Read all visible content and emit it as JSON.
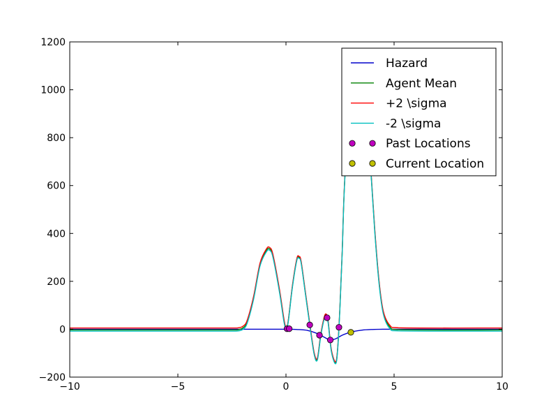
{
  "chart_data": {
    "type": "line",
    "title": "",
    "xlabel": "",
    "ylabel": "",
    "xlim": [
      -10,
      10
    ],
    "ylim": [
      -200,
      1200
    ],
    "xticks": [
      -10,
      -5,
      0,
      5,
      10
    ],
    "xtick_labels": [
      "−10",
      "−5",
      "0",
      "5",
      "10"
    ],
    "yticks": [
      -200,
      0,
      200,
      400,
      600,
      800,
      1000,
      1200
    ],
    "ytick_labels": [
      "−200",
      "0",
      "200",
      "400",
      "600",
      "800",
      "1000",
      "1200"
    ],
    "grid": false,
    "legend_position": "top-right",
    "series": [
      {
        "name": "Hazard",
        "kind": "line",
        "color": "#0000cc",
        "x": [
          -10,
          -2.5,
          -2,
          -1.5,
          -1,
          -0.5,
          0,
          0.5,
          1,
          1.5,
          1.8,
          2.05,
          2.3,
          2.6,
          3,
          3.5,
          4,
          4.5,
          5,
          10
        ],
        "y": [
          0,
          0,
          0,
          0,
          0,
          0,
          0,
          -1,
          -5,
          -20,
          -35,
          -45,
          -40,
          -25,
          -12,
          -4,
          -1,
          0,
          0,
          0
        ]
      },
      {
        "name": "Agent Mean",
        "kind": "line",
        "color": "#008000",
        "x": [
          -10,
          -2.5,
          -2.2,
          -2.0,
          -1.8,
          -1.5,
          -1.2,
          -0.9,
          -0.75,
          -0.6,
          -0.3,
          -0.1,
          0.0,
          0.1,
          0.3,
          0.5,
          0.6,
          0.7,
          0.9,
          1.1,
          1.3,
          1.45,
          1.6,
          1.75,
          1.85,
          1.95,
          2.1,
          2.3,
          2.4,
          2.5,
          2.6,
          2.7,
          2.9,
          3.1,
          3.3,
          3.5,
          3.7,
          3.9,
          4.1,
          4.3,
          4.5,
          4.8,
          5.2,
          10
        ],
        "y": [
          -3,
          -3,
          -2,
          5,
          30,
          130,
          270,
          330,
          335,
          305,
          160,
          40,
          5,
          30,
          180,
          290,
          300,
          280,
          150,
          20,
          -100,
          -125,
          -30,
          40,
          60,
          30,
          -90,
          -140,
          -70,
          100,
          320,
          590,
          900,
          1070,
          1120,
          1080,
          940,
          700,
          420,
          200,
          70,
          10,
          -2,
          -3
        ]
      },
      {
        "name": "+2 \\sigma",
        "kind": "line",
        "color": "#ff0000",
        "x": [
          -10,
          -2.5,
          -2.2,
          -2.0,
          -1.8,
          -1.5,
          -1.2,
          -0.9,
          -0.75,
          -0.6,
          -0.3,
          -0.1,
          0.0,
          0.1,
          0.3,
          0.5,
          0.6,
          0.7,
          0.9,
          1.1,
          1.3,
          1.45,
          1.6,
          1.75,
          1.85,
          1.95,
          2.1,
          2.3,
          2.4,
          2.5,
          2.6,
          2.7,
          2.9,
          3.1,
          3.3,
          3.5,
          3.7,
          3.9,
          4.1,
          4.3,
          4.5,
          4.8,
          5.2,
          10
        ],
        "y": [
          5,
          5,
          6,
          12,
          36,
          136,
          276,
          336,
          341,
          311,
          166,
          46,
          8,
          33,
          184,
          294,
          304,
          284,
          154,
          24,
          -96,
          -121,
          -26,
          44,
          64,
          34,
          -86,
          -136,
          -66,
          104,
          324,
          594,
          904,
          1074,
          1124,
          1084,
          944,
          704,
          426,
          206,
          76,
          17,
          6,
          5
        ]
      },
      {
        "name": "-2 \\sigma",
        "kind": "line",
        "color": "#00bfbf",
        "x": [
          -10,
          -2.5,
          -2.2,
          -2.0,
          -1.8,
          -1.5,
          -1.2,
          -0.9,
          -0.75,
          -0.6,
          -0.3,
          -0.1,
          0.0,
          0.1,
          0.3,
          0.5,
          0.6,
          0.7,
          0.9,
          1.1,
          1.3,
          1.45,
          1.6,
          1.75,
          1.85,
          1.95,
          2.1,
          2.3,
          2.4,
          2.5,
          2.6,
          2.7,
          2.9,
          3.1,
          3.3,
          3.5,
          3.7,
          3.9,
          4.1,
          4.3,
          4.5,
          4.8,
          5.2,
          10
        ],
        "y": [
          -8,
          -8,
          -7,
          -1,
          24,
          124,
          264,
          324,
          329,
          299,
          154,
          34,
          2,
          27,
          176,
          286,
          296,
          276,
          146,
          16,
          -104,
          -129,
          -34,
          36,
          56,
          26,
          -94,
          -144,
          -74,
          96,
          316,
          586,
          896,
          1066,
          1116,
          1076,
          936,
          696,
          414,
          194,
          64,
          3,
          -7,
          -8
        ]
      },
      {
        "name": "Past Locations",
        "kind": "scatter",
        "color": "#bf00bf",
        "x": [
          0.05,
          0.15,
          1.1,
          1.55,
          1.9,
          2.05,
          2.45
        ],
        "y": [
          2,
          2,
          18,
          -25,
          48,
          -45,
          8
        ]
      },
      {
        "name": "Current Location",
        "kind": "scatter",
        "color": "#bfbf00",
        "x": [
          3.0
        ],
        "y": [
          -13
        ]
      }
    ]
  }
}
